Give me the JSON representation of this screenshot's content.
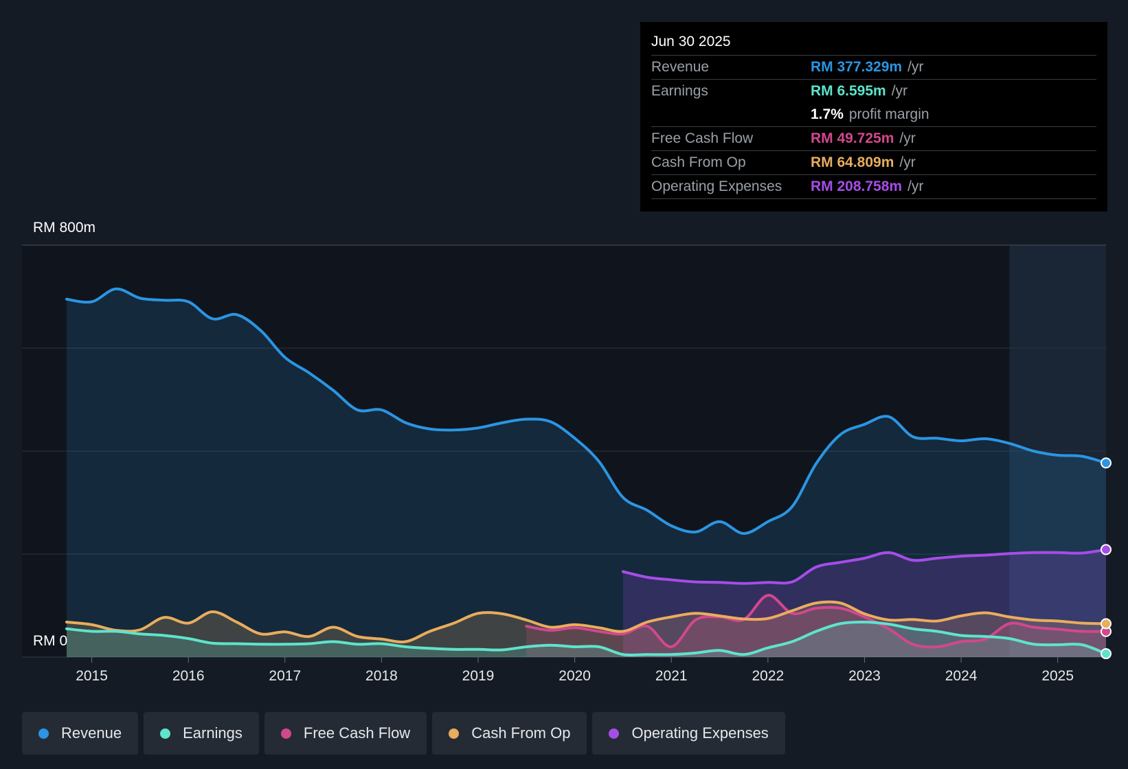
{
  "tooltip": {
    "date": "Jun 30 2025",
    "rows": [
      {
        "label": "Revenue",
        "value": "RM 377.329m",
        "unit": "/yr",
        "color": "#2b95e3"
      },
      {
        "label": "Earnings",
        "value": "RM 6.595m",
        "unit": "/yr",
        "color": "#5fe3cc"
      },
      {
        "label": "",
        "value": "1.7%",
        "unit": "profit margin",
        "color": "#ffffff"
      },
      {
        "label": "Free Cash Flow",
        "value": "RM 49.725m",
        "unit": "/yr",
        "color": "#d1488d"
      },
      {
        "label": "Cash From Op",
        "value": "RM 64.809m",
        "unit": "/yr",
        "color": "#e9ad5d"
      },
      {
        "label": "Operating Expenses",
        "value": "RM 208.758m",
        "unit": "/yr",
        "color": "#a64de8"
      }
    ]
  },
  "legend": [
    {
      "label": "Revenue",
      "color": "#2b95e3"
    },
    {
      "label": "Earnings",
      "color": "#5fe3cc"
    },
    {
      "label": "Free Cash Flow",
      "color": "#d1488d"
    },
    {
      "label": "Cash From Op",
      "color": "#e9ad5d"
    },
    {
      "label": "Operating Expenses",
      "color": "#a64de8"
    }
  ],
  "chart_data": {
    "type": "area",
    "ylim": [
      0,
      800
    ],
    "ytick_labels": {
      "top": "RM 800m",
      "bottom": "RM 0"
    },
    "xlim": [
      2014.74,
      2025.5
    ],
    "x_ticks": [
      2015,
      2016,
      2017,
      2018,
      2019,
      2020,
      2021,
      2022,
      2023,
      2024,
      2025
    ],
    "x_tick_labels": [
      "2015",
      "2016",
      "2017",
      "2018",
      "2019",
      "2020",
      "2021",
      "2022",
      "2023",
      "2024",
      "2025"
    ],
    "forecast_start": 2024.5,
    "series": [
      {
        "name": "Revenue",
        "color": "#2b95e3",
        "x": [
          2014.74,
          2015.0,
          2015.25,
          2015.5,
          2015.75,
          2016.0,
          2016.25,
          2016.5,
          2016.75,
          2017.0,
          2017.25,
          2017.5,
          2017.75,
          2018.0,
          2018.25,
          2018.5,
          2018.75,
          2019.0,
          2019.25,
          2019.5,
          2019.75,
          2020.0,
          2020.25,
          2020.5,
          2020.75,
          2021.0,
          2021.25,
          2021.5,
          2021.75,
          2022.0,
          2022.25,
          2022.5,
          2022.75,
          2023.0,
          2023.25,
          2023.5,
          2023.75,
          2024.0,
          2024.25,
          2024.5,
          2024.75,
          2025.0,
          2025.25,
          2025.5
        ],
        "values": [
          695,
          690,
          715,
          697,
          693,
          690,
          657,
          665,
          634,
          582,
          552,
          518,
          480,
          480,
          455,
          443,
          441,
          445,
          455,
          462,
          457,
          425,
          380,
          310,
          285,
          255,
          243,
          263,
          240,
          263,
          292,
          376,
          432,
          452,
          467,
          428,
          425,
          420,
          424,
          415,
          400,
          392,
          390,
          377
        ]
      },
      {
        "name": "Operating Expenses",
        "color": "#a64de8",
        "x": [
          2020.5,
          2020.75,
          2021.0,
          2021.25,
          2021.5,
          2021.75,
          2022.0,
          2022.25,
          2022.5,
          2022.75,
          2023.0,
          2023.25,
          2023.5,
          2023.75,
          2024.0,
          2024.25,
          2024.5,
          2024.75,
          2025.0,
          2025.25,
          2025.5
        ],
        "values": [
          166,
          155,
          150,
          146,
          145,
          143,
          145,
          146,
          175,
          184,
          192,
          203,
          188,
          192,
          196,
          198,
          201,
          203,
          203,
          202,
          208.758
        ]
      },
      {
        "name": "Free Cash Flow",
        "color": "#d1488d",
        "x": [
          2019.5,
          2019.75,
          2020.0,
          2020.25,
          2020.5,
          2020.75,
          2021.0,
          2021.25,
          2021.5,
          2021.75,
          2022.0,
          2022.25,
          2022.5,
          2022.75,
          2023.0,
          2023.25,
          2023.5,
          2023.75,
          2024.0,
          2024.25,
          2024.5,
          2024.75,
          2025.0,
          2025.25,
          2025.5
        ],
        "values": [
          60,
          52,
          57,
          50,
          45,
          60,
          20,
          72,
          78,
          73,
          120,
          85,
          95,
          95,
          78,
          55,
          25,
          20,
          30,
          35,
          65,
          58,
          54,
          50,
          49.725
        ]
      },
      {
        "name": "Cash From Op",
        "color": "#e9ad5d",
        "x": [
          2014.74,
          2015.0,
          2015.25,
          2015.5,
          2015.75,
          2016.0,
          2016.25,
          2016.5,
          2016.75,
          2017.0,
          2017.25,
          2017.5,
          2017.75,
          2018.0,
          2018.25,
          2018.5,
          2018.75,
          2019.0,
          2019.25,
          2019.5,
          2019.75,
          2020.0,
          2020.25,
          2020.5,
          2020.75,
          2021.0,
          2021.25,
          2021.5,
          2021.75,
          2022.0,
          2022.25,
          2022.5,
          2022.75,
          2023.0,
          2023.25,
          2023.5,
          2023.75,
          2024.0,
          2024.25,
          2024.5,
          2024.75,
          2025.0,
          2025.25,
          2025.5
        ],
        "values": [
          68,
          63,
          52,
          53,
          77,
          66,
          88,
          68,
          45,
          49,
          40,
          58,
          40,
          35,
          30,
          50,
          66,
          85,
          84,
          72,
          58,
          63,
          57,
          50,
          68,
          78,
          85,
          80,
          74,
          75,
          90,
          105,
          105,
          84,
          72,
          73,
          70,
          80,
          86,
          78,
          72,
          70,
          66,
          64.809
        ]
      },
      {
        "name": "Earnings",
        "color": "#5fe3cc",
        "x": [
          2014.74,
          2015.0,
          2015.25,
          2015.5,
          2015.75,
          2016.0,
          2016.25,
          2016.5,
          2016.75,
          2017.0,
          2017.25,
          2017.5,
          2017.75,
          2018.0,
          2018.25,
          2018.5,
          2018.75,
          2019.0,
          2019.25,
          2019.5,
          2019.75,
          2020.0,
          2020.25,
          2020.5,
          2020.75,
          2021.0,
          2021.25,
          2021.5,
          2021.75,
          2022.0,
          2022.25,
          2022.5,
          2022.75,
          2023.0,
          2023.25,
          2023.5,
          2023.75,
          2024.0,
          2024.25,
          2024.5,
          2024.75,
          2025.0,
          2025.25,
          2025.5
        ],
        "values": [
          55,
          50,
          50,
          45,
          42,
          36,
          27,
          26,
          25,
          25,
          26,
          30,
          25,
          26,
          20,
          17,
          15,
          15,
          14,
          20,
          23,
          20,
          20,
          5,
          5,
          5,
          8,
          13,
          5,
          18,
          30,
          50,
          65,
          68,
          64,
          55,
          50,
          42,
          40,
          36,
          25,
          24,
          24,
          6.595
        ]
      }
    ]
  }
}
